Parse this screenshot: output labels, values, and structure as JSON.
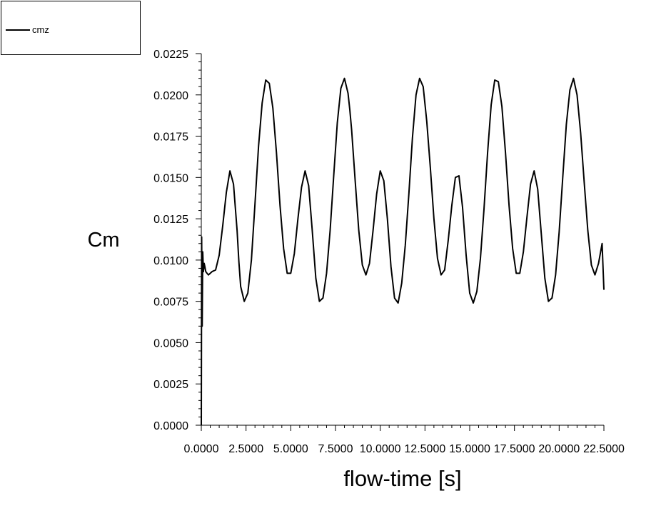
{
  "legend": {
    "label": "cmz"
  },
  "chart_data": {
    "type": "line",
    "xlabel": "flow-time [s]",
    "ylabel": "Cm",
    "xlim": [
      0,
      22.5
    ],
    "ylim": [
      0,
      0.0225
    ],
    "x_ticks": [
      "0.0000",
      "2.5000",
      "5.0000",
      "7.5000",
      "10.0000",
      "12.5000",
      "15.0000",
      "17.5000",
      "20.0000",
      "22.5000"
    ],
    "y_ticks": [
      "0.0000",
      "0.0025",
      "0.0050",
      "0.0075",
      "0.0100",
      "0.0125",
      "0.0150",
      "0.0175",
      "0.0200",
      "0.0225"
    ],
    "grid": false,
    "legend_position": "top-left",
    "series": [
      {
        "name": "cmz",
        "color": "#000000",
        "x": [
          0.0,
          0.02,
          0.05,
          0.08,
          0.12,
          0.16,
          0.2,
          0.25,
          0.32,
          0.4,
          0.5,
          0.6,
          0.8,
          1.0,
          1.2,
          1.4,
          1.6,
          1.8,
          2.0,
          2.1,
          2.2,
          2.4,
          2.6,
          2.8,
          3.0,
          3.2,
          3.4,
          3.6,
          3.8,
          4.0,
          4.2,
          4.4,
          4.6,
          4.8,
          5.0,
          5.2,
          5.4,
          5.6,
          5.8,
          6.0,
          6.2,
          6.4,
          6.6,
          6.8,
          7.0,
          7.2,
          7.4,
          7.6,
          7.8,
          8.0,
          8.2,
          8.3,
          8.4,
          8.6,
          8.8,
          9.0,
          9.2,
          9.4,
          9.6,
          9.8,
          10.0,
          10.2,
          10.4,
          10.6,
          10.8,
          11.0,
          11.2,
          11.4,
          11.6,
          11.8,
          12.0,
          12.2,
          12.4,
          12.6,
          12.8,
          13.0,
          13.2,
          13.4,
          13.6,
          13.8,
          14.0,
          14.2,
          14.4,
          14.6,
          14.8,
          15.0,
          15.2,
          15.4,
          15.6,
          15.8,
          16.0,
          16.2,
          16.4,
          16.6,
          16.8,
          17.0,
          17.2,
          17.4,
          17.6,
          17.8,
          18.0,
          18.2,
          18.4,
          18.6,
          18.8,
          19.0,
          19.2,
          19.4,
          19.6,
          19.8,
          20.0,
          20.2,
          20.4,
          20.6,
          20.8,
          21.0,
          21.2,
          21.4,
          21.6,
          21.8,
          22.0,
          22.2,
          22.4,
          22.5
        ],
        "y": [
          0.0,
          0.0114,
          0.006,
          0.0105,
          0.0093,
          0.0098,
          0.0096,
          0.0093,
          0.0092,
          0.0091,
          0.0092,
          0.0093,
          0.0094,
          0.0103,
          0.0121,
          0.0141,
          0.0154,
          0.0146,
          0.0118,
          0.0099,
          0.0084,
          0.0075,
          0.008,
          0.01,
          0.0134,
          0.0169,
          0.0195,
          0.0209,
          0.0207,
          0.0192,
          0.0165,
          0.0133,
          0.0107,
          0.0092,
          0.0092,
          0.0104,
          0.0125,
          0.0144,
          0.0154,
          0.0145,
          0.0118,
          0.0089,
          0.0075,
          0.0077,
          0.0092,
          0.0118,
          0.0151,
          0.0183,
          0.0204,
          0.021,
          0.0201,
          0.0191,
          0.0179,
          0.0148,
          0.0118,
          0.0097,
          0.0091,
          0.0098,
          0.0118,
          0.014,
          0.0154,
          0.0148,
          0.0125,
          0.0096,
          0.0077,
          0.0074,
          0.0086,
          0.0109,
          0.014,
          0.0174,
          0.02,
          0.021,
          0.0205,
          0.0184,
          0.0156,
          0.0125,
          0.0101,
          0.0091,
          0.0094,
          0.0112,
          0.0133,
          0.015,
          0.0151,
          0.0132,
          0.0103,
          0.008,
          0.0074,
          0.0081,
          0.0101,
          0.0131,
          0.0165,
          0.0194,
          0.0209,
          0.0208,
          0.0193,
          0.0165,
          0.0133,
          0.0107,
          0.0092,
          0.0092,
          0.0105,
          0.0126,
          0.0146,
          0.0154,
          0.0143,
          0.0116,
          0.0089,
          0.0075,
          0.0077,
          0.0091,
          0.0117,
          0.015,
          0.0182,
          0.0203,
          0.021,
          0.02,
          0.0177,
          0.0147,
          0.0118,
          0.0097,
          0.0091,
          0.0098,
          0.011,
          0.0082
        ]
      }
    ]
  }
}
